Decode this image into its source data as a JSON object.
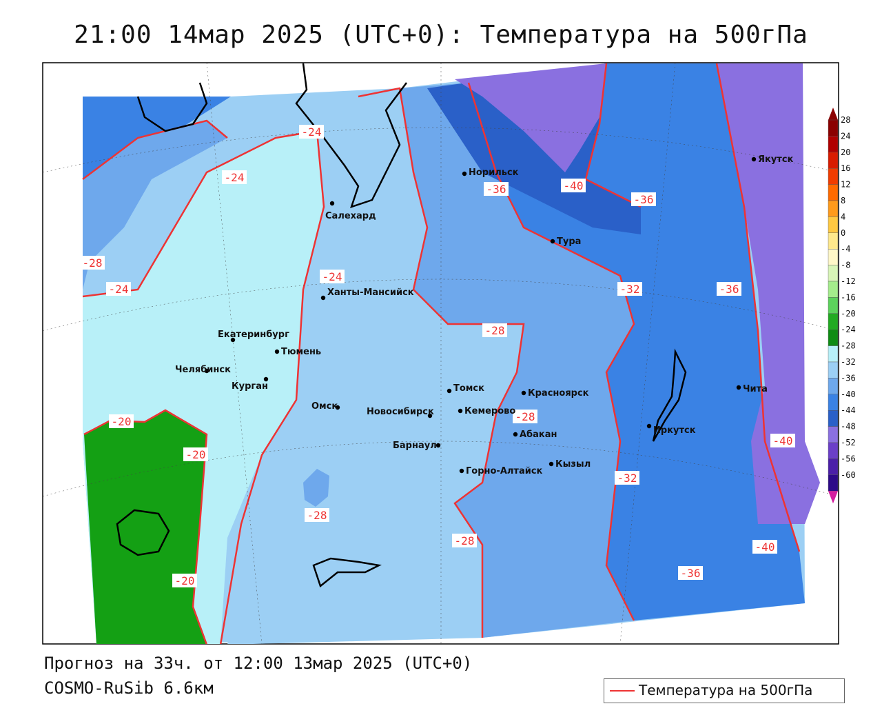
{
  "title": "21:00 14мар 2025 (UTC+0): Температура на 500гПа",
  "footer": {
    "forecast": "Прогноз на 33ч. от 12:00 13мар 2025 (UTC+0)",
    "model": "COSMO-RuSib 6.6км"
  },
  "legend": {
    "label": "Температура на 500гПа",
    "line_color": "#e33333"
  },
  "colorbar": {
    "levels": [
      "28",
      "24",
      "20",
      "16",
      "12",
      "8",
      "4",
      "0",
      "-4",
      "-8",
      "-12",
      "-16",
      "-20",
      "-24",
      "-28",
      "-32",
      "-36",
      "-40",
      "-44",
      "-48",
      "-52",
      "-56",
      "-60"
    ],
    "colors": [
      "#8b0000",
      "#b00000",
      "#d81c00",
      "#f03c00",
      "#ff6a00",
      "#ff9a1c",
      "#ffc842",
      "#ffe88c",
      "#fff7c8",
      "#d8f5b8",
      "#a4ec8c",
      "#5cd25c",
      "#22aa22",
      "#0f8c14",
      "#b8f0f8",
      "#9ccff4",
      "#6ea8ec",
      "#3a82e4",
      "#2a60c8",
      "#8a70e0",
      "#6b3fc8",
      "#4b1fa8",
      "#2d0a88",
      "#d41ea0"
    ]
  },
  "isotherm_labels": [
    {
      "text": "-24"
    },
    {
      "text": "-24"
    },
    {
      "text": "-28"
    },
    {
      "text": "-24"
    },
    {
      "text": "-24"
    },
    {
      "text": "-36"
    },
    {
      "text": "-40"
    },
    {
      "text": "-36"
    },
    {
      "text": "-32"
    },
    {
      "text": "-36"
    },
    {
      "text": "-28"
    },
    {
      "text": "-28"
    },
    {
      "text": "-20"
    },
    {
      "text": "-20"
    },
    {
      "text": "-28"
    },
    {
      "text": "-28"
    },
    {
      "text": "-20"
    },
    {
      "text": "-32"
    },
    {
      "text": "-40"
    },
    {
      "text": "-40"
    },
    {
      "text": "-36"
    }
  ],
  "cities": [
    {
      "name": "Норильск"
    },
    {
      "name": "Якутск"
    },
    {
      "name": "Салехард"
    },
    {
      "name": "Тура"
    },
    {
      "name": "Ханты-Мансийск"
    },
    {
      "name": "Екатеринбург"
    },
    {
      "name": "Тюмень"
    },
    {
      "name": "Челябинск"
    },
    {
      "name": "Курган"
    },
    {
      "name": "Омск"
    },
    {
      "name": "Новосибирск"
    },
    {
      "name": "Томск"
    },
    {
      "name": "Красноярск"
    },
    {
      "name": "Кемерово"
    },
    {
      "name": "Абакан"
    },
    {
      "name": "Барнаул"
    },
    {
      "name": "Иркутск"
    },
    {
      "name": "Чита"
    },
    {
      "name": "Кызыл"
    },
    {
      "name": "Горно-Алтайск"
    }
  ]
}
